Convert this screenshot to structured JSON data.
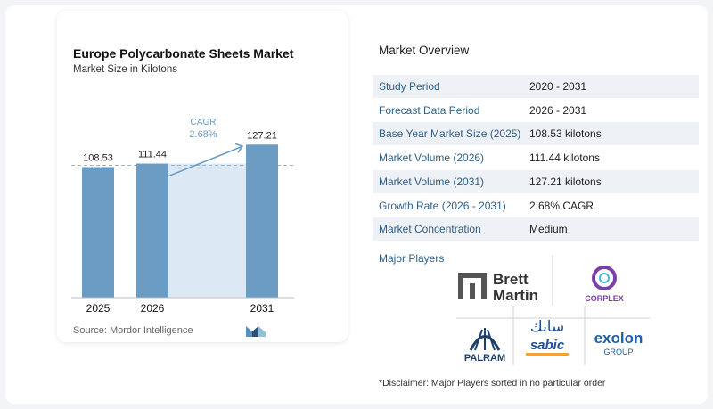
{
  "chart_data": {
    "type": "bar",
    "title": "Europe Polycarbonate Sheets Market",
    "subtitle": "Market Size in Kilotons",
    "categories": [
      "2025",
      "2026",
      "2031"
    ],
    "values": [
      108.53,
      111.44,
      127.21
    ],
    "value_labels": [
      "108.53",
      "111.44",
      "127.21"
    ],
    "cagr_label": "CAGR",
    "cagr_value": "2.68%",
    "colors": {
      "bar": "#6b9cc4",
      "band": "#dce8f3",
      "dashed": "#9ab7cf",
      "arrow": "#6b9cc4",
      "cagr_text": "#6b9cc4"
    }
  },
  "source": "Source:  Mordor Intelligence",
  "overview": {
    "title": "Market Overview",
    "rows": [
      {
        "label": "Study Period",
        "value": "2020 - 2031"
      },
      {
        "label": "Forecast Data Period",
        "value": "2026 - 2031"
      },
      {
        "label": "Base Year Market Size (2025)",
        "value": "108.53 kilotons"
      },
      {
        "label": "Market Volume (2026)",
        "value": "111.44 kilotons"
      },
      {
        "label": "Market Volume (2031)",
        "value": "127.21 kilotons"
      },
      {
        "label": "Growth Rate (2026 - 2031)",
        "value": "2.68% CAGR"
      },
      {
        "label": "Market Concentration",
        "value": "Medium"
      }
    ]
  },
  "players": {
    "title": "Major Players",
    "logos": {
      "brett_martin": [
        "Brett",
        "Martin"
      ],
      "corplex": "CORPLEX",
      "palram": "PALRAM",
      "sabic": "sabic",
      "sabic_arabic": "سابك",
      "exolon": [
        "exolon",
        "GROUP"
      ]
    }
  },
  "disclaimer": "*Disclaimer: Major Players sorted in no particular order"
}
